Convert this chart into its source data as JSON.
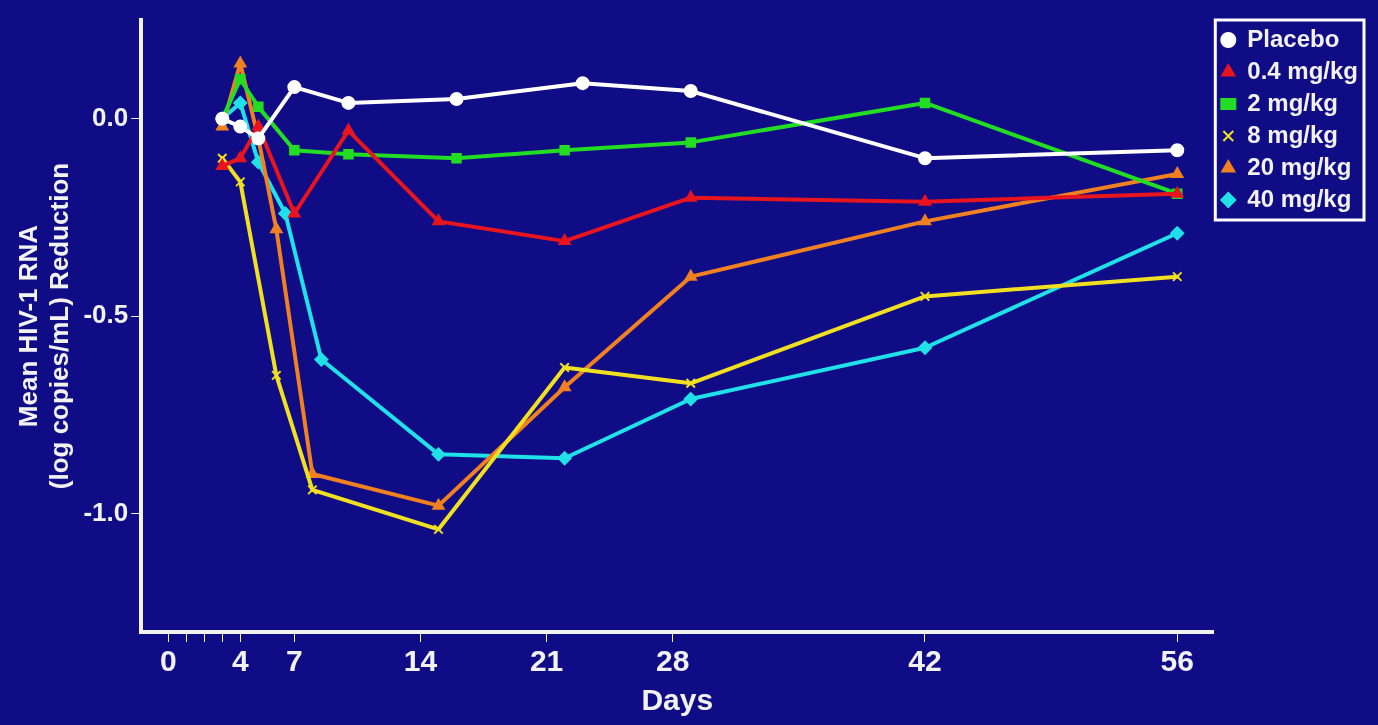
{
  "chart_data": {
    "type": "line",
    "xlabel": "Days",
    "ylabel": "Mean HIV-1 RNA\n(log copies/mL) Reduction",
    "xlim": [
      -1.5,
      58
    ],
    "xticks": [
      0,
      {
        "value": 1,
        "label": null
      },
      {
        "value": 2,
        "label": null
      },
      {
        "value": 3,
        "label": null
      },
      4,
      7,
      14,
      21,
      28,
      42,
      56
    ],
    "ylim": [
      -1.3,
      0.25
    ],
    "yticks": [
      {
        "value": -1,
        "label": "-1.0"
      },
      {
        "value": -0.5,
        "label": "-0.5"
      },
      {
        "value": 0,
        "label": "0.0"
      }
    ],
    "grid": false,
    "legend": "top right",
    "line_style": "solid",
    "series": [
      {
        "name": "Placebo",
        "color": "#ffffff",
        "marker": "circle",
        "x": [
          3,
          4,
          5,
          7,
          10,
          16,
          23,
          29,
          42,
          56
        ],
        "values": [
          0,
          -0.02,
          -0.05,
          0.08,
          0.04,
          0.05,
          0.09,
          0.07,
          -0.1,
          -0.08
        ]
      },
      {
        "name": "0.4 mg/kg",
        "color": "#e8141e",
        "marker": "triangle",
        "x": [
          3,
          4,
          5,
          7,
          10,
          15,
          22,
          29,
          42,
          56
        ],
        "values": [
          -0.12,
          -0.1,
          -0.02,
          -0.24,
          -0.03,
          -0.26,
          -0.31,
          -0.2,
          -0.21,
          -0.19
        ]
      },
      {
        "name": "2 mg/kg",
        "color": "#22dd22",
        "marker": "square",
        "x": [
          3,
          4,
          5,
          7,
          10,
          16,
          22,
          29,
          42,
          56
        ],
        "values": [
          0,
          0.1,
          0.03,
          -0.08,
          -0.09,
          -0.1,
          -0.08,
          -0.06,
          0.04,
          -0.19
        ]
      },
      {
        "name": "8 mg/kg",
        "color": "#f0e020",
        "marker": "cross",
        "x": [
          3,
          4,
          6,
          8,
          15,
          22,
          29,
          42,
          56
        ],
        "values": [
          -0.1,
          -0.16,
          -0.65,
          -0.94,
          -1.04,
          -0.63,
          -0.67,
          -0.45,
          -0.4
        ]
      },
      {
        "name": "20 mg/kg",
        "color": "#f08020",
        "marker": "triangle",
        "x": [
          3,
          4,
          5,
          6,
          8,
          15,
          22,
          29,
          42,
          56
        ],
        "values": [
          -0.02,
          0.14,
          -0.05,
          -0.28,
          -0.9,
          -0.98,
          -0.68,
          -0.4,
          -0.26,
          -0.14
        ]
      },
      {
        "name": "40 mg/kg",
        "color": "#20e0e8",
        "marker": "diamond",
        "x": [
          3,
          4,
          5,
          6.5,
          8.5,
          15,
          22,
          29,
          42,
          56
        ],
        "values": [
          0,
          0.04,
          -0.11,
          -0.24,
          -0.61,
          -0.85,
          -0.86,
          -0.71,
          -0.58,
          -0.29
        ]
      }
    ]
  }
}
